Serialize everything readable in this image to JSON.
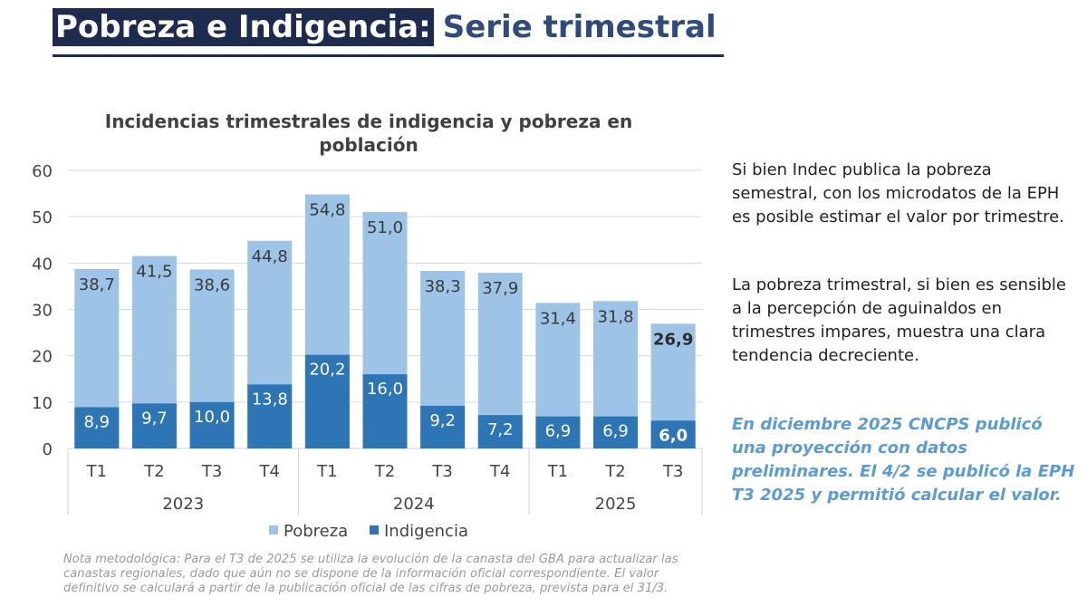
{
  "header": {
    "title_highlight": "Pobreza e Indigencia:",
    "title_rest": "Serie trimestral"
  },
  "colors": {
    "pobreza": "#9dc3e6",
    "indigencia": "#2e75b6",
    "title_bg": "#1d2b4f",
    "title_text": "#2e4b7c",
    "callout": "#5b9bd5"
  },
  "chart_data": {
    "type": "bar",
    "stacking": "overlay",
    "title_lines": [
      "Incidencias trimestrales de indigencia y pobreza en",
      "población"
    ],
    "categories": [
      "T1",
      "T2",
      "T3",
      "T4",
      "T1",
      "T2",
      "T3",
      "T4",
      "T1",
      "T2",
      "T3"
    ],
    "year_groups": [
      {
        "label": "2023",
        "count": 4
      },
      {
        "label": "2024",
        "count": 4
      },
      {
        "label": "2025",
        "count": 3
      }
    ],
    "series": [
      {
        "name": "Pobreza",
        "values": [
          38.7,
          41.5,
          38.6,
          44.8,
          54.8,
          51.0,
          38.3,
          37.9,
          31.4,
          31.8,
          26.9
        ],
        "labels": [
          "38,7",
          "41,5",
          "38,6",
          "44,8",
          "54,8",
          "51,0",
          "38,3",
          "37,9",
          "31,4",
          "31,8",
          "26,9"
        ]
      },
      {
        "name": "Indigencia",
        "values": [
          8.9,
          9.7,
          10.0,
          13.8,
          20.2,
          16.0,
          9.2,
          7.2,
          6.9,
          6.9,
          6.0
        ],
        "labels": [
          "8,9",
          "9,7",
          "10,0",
          "13,8",
          "20,2",
          "16,0",
          "9,2",
          "7,2",
          "6,9",
          "6,9",
          "6,0"
        ]
      }
    ],
    "highlight_last": true,
    "yticks": [
      0,
      10,
      20,
      30,
      40,
      50,
      60
    ],
    "ylim": [
      0,
      60
    ],
    "grid": true,
    "legend_position": "bottom"
  },
  "side": {
    "p1": "Si bien Indec publica la pobreza semestral, con los microdatos de la EPH es posible estimar el valor por trimestre.",
    "p2": "La pobreza trimestral, si bien es sensible a la percepción de aguinaldos en trimestres impares, muestra una clara tendencia decreciente.",
    "p3": "En diciembre 2025 CNCPS publicó una proyección con datos preliminares. El 4/2 se publicó la EPH T3 2025 y permitió calcular el valor."
  },
  "note": "Nota metodológica: Para el T3 de 2025 se utiliza la evolución de la canasta del GBA para actualizar las canastas regionales, dado que aún no se dispone de la información oficial correspondiente. El valor definitivo se calculará a partir de la publicación oficial de las cifras de pobreza, prevista para el 31/3."
}
